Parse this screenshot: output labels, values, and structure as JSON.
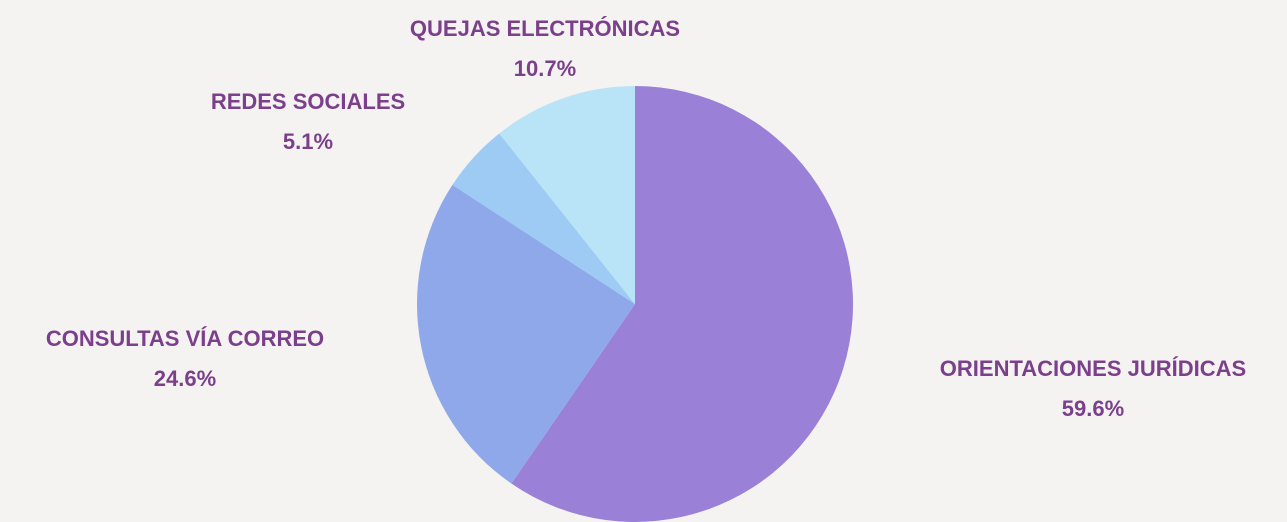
{
  "chart_data": {
    "type": "pie",
    "categories": [
      "ORIENTACIONES JURÍDICAS",
      "CONSULTAS VÍA CORREO",
      "REDES SOCIALES",
      "QUEJAS ELECTRÓNICAS"
    ],
    "values": [
      59.6,
      24.6,
      5.1,
      10.7
    ],
    "value_labels": [
      "59.6%",
      "24.6%",
      "5.1%",
      "10.7%"
    ],
    "colors": [
      "#9b80d8",
      "#8fa8ea",
      "#9ecbf4",
      "#b9e3f7"
    ]
  }
}
